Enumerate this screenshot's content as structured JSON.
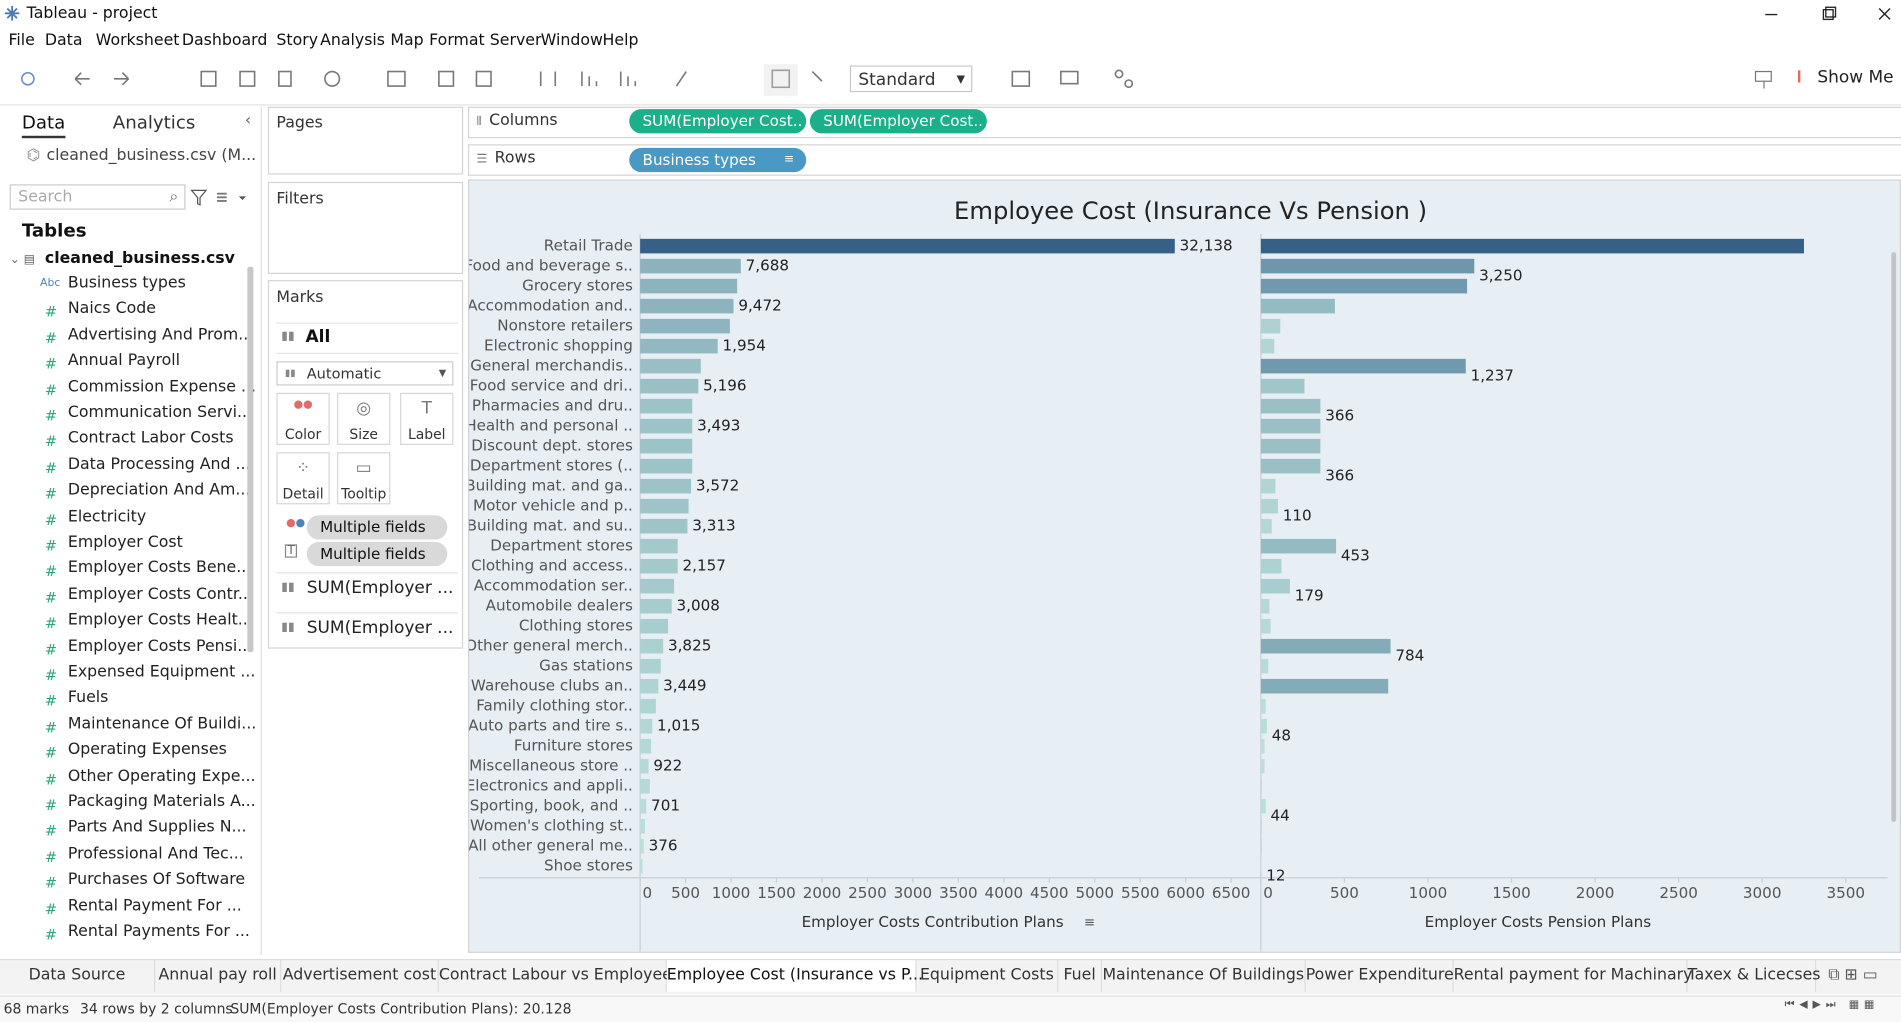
{
  "window": {
    "title": "Tableau - project"
  },
  "menu": [
    "File",
    "Data",
    "Worksheet",
    "Dashboard",
    "Story",
    "Analysis",
    "Map",
    "Format",
    "Server",
    "Window",
    "Help"
  ],
  "toolbar": {
    "fit": "Standard",
    "show_me": "Show Me"
  },
  "sidebar": {
    "tabs": [
      "Data",
      "Analytics"
    ],
    "source": "cleaned_business.csv (M...",
    "search": "Search",
    "tables_heading": "Tables",
    "table": "cleaned_business.csv",
    "fields": [
      {
        "icon": "Abc",
        "name": "Business types"
      },
      {
        "icon": "#",
        "name": "Naics Code"
      },
      {
        "icon": "#",
        "name": "Advertising And Prom..."
      },
      {
        "icon": "#",
        "name": "Annual Payroll"
      },
      {
        "icon": "#",
        "name": "Commission Expense ..."
      },
      {
        "icon": "#",
        "name": "Communication Servi..."
      },
      {
        "icon": "#",
        "name": "Contract Labor Costs"
      },
      {
        "icon": "#",
        "name": "Data Processing And ..."
      },
      {
        "icon": "#",
        "name": "Depreciation And Am..."
      },
      {
        "icon": "#",
        "name": "Electricity"
      },
      {
        "icon": "#",
        "name": "Employer Cost"
      },
      {
        "icon": "#",
        "name": "Employer Costs Bene..."
      },
      {
        "icon": "#",
        "name": "Employer Costs Contr..."
      },
      {
        "icon": "#",
        "name": "Employer Costs Healt..."
      },
      {
        "icon": "#",
        "name": "Employer Costs Pensi..."
      },
      {
        "icon": "#",
        "name": "Expensed Equipment ..."
      },
      {
        "icon": "#",
        "name": "Fuels"
      },
      {
        "icon": "#",
        "name": "Maintenance Of Buildi..."
      },
      {
        "icon": "#",
        "name": "Operating Expenses"
      },
      {
        "icon": "#",
        "name": "Other Operating Expe..."
      },
      {
        "icon": "#",
        "name": "Packaging Materials A..."
      },
      {
        "icon": "#",
        "name": "Parts And Supplies N..."
      },
      {
        "icon": "#",
        "name": "Professional And Tec..."
      },
      {
        "icon": "#",
        "name": "Purchases Of Software"
      },
      {
        "icon": "#",
        "name": "Rental Payment For ..."
      },
      {
        "icon": "#",
        "name": "Rental Payments For ..."
      }
    ]
  },
  "cards": {
    "pages": "Pages",
    "filters": "Filters",
    "marks": "Marks",
    "all": "All",
    "mark_type": "Automatic",
    "buttons": [
      "Color",
      "Size",
      "Label",
      "Detail",
      "Tooltip"
    ],
    "fields": [
      "Multiple fields",
      "Multiple fields"
    ],
    "measures": [
      "SUM(Employer ...",
      "SUM(Employer ..."
    ]
  },
  "shelves": {
    "columns": "Columns",
    "rows": "Rows",
    "column_pills": [
      "SUM(Employer Cost..",
      "SUM(Employer Cost.."
    ],
    "row_pills": [
      "Business types"
    ]
  },
  "chart_data": [
    {
      "type": "bar",
      "orientation": "horizontal",
      "title": "Employee Cost (Insurance Vs Pension )",
      "categories": [
        "Retail Trade",
        "Food and beverage s..",
        "Grocery stores",
        "Accommodation and..",
        "Nonstore retailers",
        "Electronic shopping",
        "General merchandis..",
        "Food service and dri..",
        "Pharmacies and dru..",
        "Health and personal ..",
        "Discount dept. stores",
        "Department stores (..",
        "Building mat. and ga..",
        "Motor vehicle and p..",
        "Building mat. and su..",
        "Department stores",
        "Clothing and access..",
        "Accommodation ser..",
        "Automobile dealers",
        "Clothing stores",
        "Other general merch..",
        "Gas stations",
        "Warehouse clubs an..",
        "Family clothing stor..",
        "Auto parts and tire s..",
        "Furniture stores",
        "Miscellaneous store ..",
        "Electronics and appli..",
        "Sporting, book, and ..",
        "Women's clothing st..",
        "All other general me..",
        "Shoe stores"
      ],
      "values": [
        5880,
        1107,
        1067,
        1027,
        987,
        853,
        667,
        640,
        573,
        573,
        573,
        573,
        560,
        533,
        520,
        413,
        413,
        373,
        347,
        307,
        253,
        227,
        200,
        173,
        133,
        120,
        93,
        107,
        67,
        53,
        40,
        27
      ],
      "data_labels": [
        "32,138",
        "7,688",
        null,
        "9,472",
        null,
        "1,954",
        null,
        "5,196",
        null,
        "3,493",
        null,
        null,
        "3,572",
        null,
        "3,313",
        null,
        "2,157",
        null,
        "3,008",
        null,
        "3,825",
        null,
        "3,449",
        null,
        "1,015",
        null,
        "922",
        null,
        "701",
        null,
        "376",
        null
      ],
      "xlim": [
        0,
        6700
      ],
      "xticks": [
        0,
        500,
        1000,
        1500,
        2000,
        2500,
        3000,
        3500,
        4000,
        4500,
        5000,
        5500,
        6000,
        6500
      ],
      "x_label": "Employer Costs Contribution Plans",
      "color_range": [
        "#c4e8df",
        "#2a5783"
      ]
    },
    {
      "type": "bar",
      "orientation": "horizontal",
      "values": [
        3250,
        1277,
        1234,
        443,
        116,
        80,
        1226,
        261,
        356,
        356,
        356,
        356,
        87,
        102,
        65,
        450,
        123,
        174,
        51,
        58,
        776,
        44,
        762,
        29,
        36,
        22,
        22,
        7,
        29,
        7,
        7,
        3
      ],
      "data_labels": [
        null,
        "3,250",
        null,
        null,
        null,
        null,
        "1,237",
        null,
        "366",
        null,
        null,
        "366",
        null,
        "110",
        null,
        "453",
        null,
        "179",
        null,
        null,
        "784",
        null,
        null,
        null,
        "48",
        null,
        null,
        null,
        "44",
        null,
        null,
        "12"
      ],
      "xlim": [
        0,
        3700
      ],
      "xticks": [
        0,
        500,
        1000,
        1500,
        2000,
        2500,
        3000,
        3500
      ],
      "x_label": "Employer Costs Pension Plans",
      "color_range": [
        "#c4e8df",
        "#2a5783"
      ]
    }
  ],
  "tabs": [
    "Data Source",
    "Annual pay roll",
    "Advertisement cost",
    "Contract Labour vs Employee",
    "Employee Cost (Insurance vs P...",
    "Equipment Costs",
    "Fuel",
    "Maintenance Of Buildings",
    "Power Expenditure",
    "Rental payment for Machinary",
    "Taxex & Licecses"
  ],
  "status": [
    "68 marks",
    "34 rows by 2 columns",
    "SUM(Employer Costs Contribution Plans): 20.128"
  ]
}
